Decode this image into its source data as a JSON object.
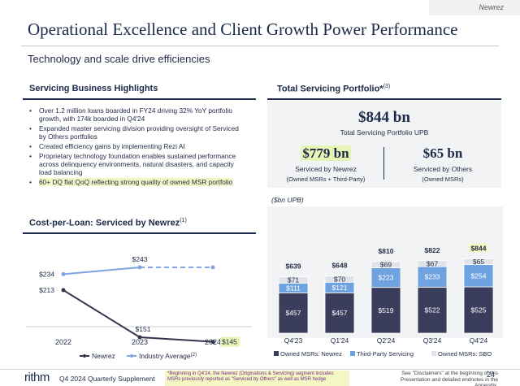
{
  "brand": "Newrez",
  "title": "Operational Excellence and Client Growth Power Performance",
  "subtitle": "Technology and scale drive efficiencies",
  "servicing_highlights": {
    "heading": "Servicing Business Highlights",
    "bullets": [
      "Over 1.2 million loans boarded in FY24 driving 32% YoY portfolio growth, with 174k boarded in Q4'24",
      "Expanded master servicing division providing oversight of Serviced by Others portfolios",
      "Created efficiency gains by implementing Rezi AI",
      "Proprietary technology foundation enables sustained performance across delinquency environments, natural disasters, and capacity load balancing",
      "60+ DQ flat QoQ reflecting strong quality of owned MSR portfolio"
    ]
  },
  "portfolio": {
    "heading": "Total Servicing Portfolio*",
    "heading_sup": "(3)",
    "total_value": "$844 bn",
    "total_label": "Total Servicing Portfolio UPB",
    "newrez_value": "$779 bn",
    "newrez_label": "Serviced by Newrez",
    "newrez_sub": "(Owned MSRs + Third-Party)",
    "others_value": "$65 bn",
    "others_label": "Serviced by Others",
    "others_sub": "(Owned MSRs)"
  },
  "cost_per_loan": {
    "heading": "Cost-per-Loan: Serviced by Newrez",
    "heading_sup": "(1)"
  },
  "footer": {
    "logo": "rithm",
    "doc_title": "Q4 2024 Quarterly Supplement",
    "footnote": "*Beginning in Q4'24, the Newrez (Originations & Servicing) segment includes MSRs previously reported as \"Serviced by Others\" as well as MSR hedge",
    "disclaimer": "See \"Disclaimers\" at the beginning of this Presentation and detailed endnotes in the Appendix.",
    "page": "24"
  },
  "chart_data": [
    {
      "type": "bar",
      "stacked": true,
      "unit_label": "($bn UPB)",
      "categories": [
        "Q4'23",
        "Q1'24",
        "Q2'24",
        "Q3'24",
        "Q4'24"
      ],
      "series": [
        {
          "name": "Owned MSRs: Newrez",
          "values": [
            457,
            457,
            519,
            522,
            525
          ],
          "labels": [
            "$457",
            "$457",
            "$519",
            "$522",
            "$525"
          ],
          "color": "#3b3d5c"
        },
        {
          "name": "Third-Party Servicing",
          "values": [
            111,
            121,
            223,
            233,
            254
          ],
          "labels": [
            "$111",
            "$121",
            "$223",
            "$233",
            "$254"
          ],
          "color": "#6fa3e0"
        },
        {
          "name": "Owned MSRs: SBO",
          "values": [
            71,
            70,
            69,
            67,
            65
          ],
          "labels": [
            "$71",
            "$70",
            "$69",
            "$67",
            "$65"
          ],
          "color": "#e1e3e8"
        }
      ],
      "totals": [
        "$639",
        "$648",
        "$810",
        "$822",
        "$844"
      ],
      "highlight_total_index": 4,
      "legend_position": "bottom"
    },
    {
      "type": "line",
      "x": [
        "2022",
        "2023",
        "2024"
      ],
      "series": [
        {
          "name": "Newrez",
          "values": [
            213,
            151,
            145
          ],
          "labels": [
            "$213",
            "$151",
            "$145"
          ],
          "color": "#33334d",
          "style": "solid"
        },
        {
          "name": "Industry Average",
          "name_sup": "(2)",
          "values": [
            234,
            243,
            null
          ],
          "labels": [
            "$234",
            "$243",
            ""
          ],
          "projected_value": 243,
          "color": "#7ea6e0",
          "style": "solid-then-dashed"
        }
      ],
      "highlight_label": "$145",
      "legend_position": "bottom"
    }
  ]
}
